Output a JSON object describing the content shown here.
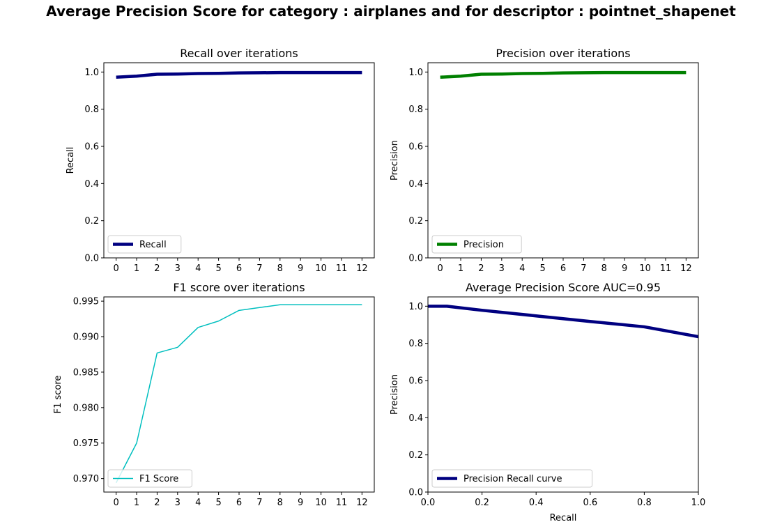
{
  "figure": {
    "suptitle": "Average Precision Score for category : airplanes and for descriptor : pointnet_shapenet"
  },
  "chart_data": [
    {
      "type": "line",
      "title": "Recall over iterations",
      "xlabel": "",
      "ylabel": "Recall",
      "x": [
        0,
        1,
        2,
        3,
        4,
        5,
        6,
        7,
        8,
        9,
        10,
        11,
        12
      ],
      "xticks": [
        0,
        1,
        2,
        3,
        4,
        5,
        6,
        7,
        8,
        9,
        10,
        11,
        12
      ],
      "xlim": [
        -0.6,
        12.6
      ],
      "yticks": [
        0.0,
        0.2,
        0.4,
        0.6,
        0.8,
        1.0
      ],
      "ylim": [
        0.0,
        1.05
      ],
      "tick_decimals": 1,
      "grid": false,
      "legend": "lower left",
      "series": [
        {
          "name": "Recall",
          "color": "#000080",
          "linewidth": 4.5,
          "values": [
            0.972,
            0.978,
            0.988,
            0.989,
            0.992,
            0.993,
            0.995,
            0.996,
            0.997,
            0.997,
            0.997,
            0.997,
            0.997
          ]
        }
      ]
    },
    {
      "type": "line",
      "title": "Precision over iterations",
      "xlabel": "",
      "ylabel": "Precision",
      "x": [
        0,
        1,
        2,
        3,
        4,
        5,
        6,
        7,
        8,
        9,
        10,
        11,
        12
      ],
      "xticks": [
        0,
        1,
        2,
        3,
        4,
        5,
        6,
        7,
        8,
        9,
        10,
        11,
        12
      ],
      "xlim": [
        -0.6,
        12.6
      ],
      "yticks": [
        0.0,
        0.2,
        0.4,
        0.6,
        0.8,
        1.0
      ],
      "ylim": [
        0.0,
        1.05
      ],
      "tick_decimals": 1,
      "grid": false,
      "legend": "lower left",
      "series": [
        {
          "name": "Precision",
          "color": "#008000",
          "linewidth": 4.5,
          "values": [
            0.972,
            0.978,
            0.988,
            0.989,
            0.992,
            0.993,
            0.995,
            0.996,
            0.997,
            0.997,
            0.997,
            0.997,
            0.997
          ]
        }
      ]
    },
    {
      "type": "line",
      "title": "F1 score over iterations",
      "xlabel": "",
      "ylabel": "F1 score",
      "x": [
        0,
        1,
        2,
        3,
        4,
        5,
        6,
        7,
        8,
        9,
        10,
        11,
        12
      ],
      "xticks": [
        0,
        1,
        2,
        3,
        4,
        5,
        6,
        7,
        8,
        9,
        10,
        11,
        12
      ],
      "xlim": [
        -0.6,
        12.6
      ],
      "yticks": [
        0.97,
        0.975,
        0.98,
        0.985,
        0.99,
        0.995
      ],
      "ylim": [
        0.9681,
        0.9956
      ],
      "tick_decimals": 3,
      "grid": false,
      "legend": "lower left",
      "series": [
        {
          "name": "F1 Score",
          "color": "#00BFBF",
          "linewidth": 1.5,
          "values": [
            0.9694,
            0.975,
            0.9877,
            0.9885,
            0.9913,
            0.9922,
            0.9937,
            0.9941,
            0.9945,
            0.9945,
            0.9945,
            0.9945,
            0.9945
          ]
        }
      ]
    },
    {
      "type": "line",
      "title": "Average Precision Score AUC=0.95",
      "xlabel": "Recall",
      "ylabel": "Precision",
      "x": [
        0.0,
        0.07,
        0.2,
        0.4,
        0.6,
        0.8,
        1.0
      ],
      "xticks": [
        0.0,
        0.2,
        0.4,
        0.6,
        0.8,
        1.0
      ],
      "xlim": [
        0.0,
        1.0
      ],
      "yticks": [
        0.0,
        0.2,
        0.4,
        0.6,
        0.8,
        1.0
      ],
      "ylim": [
        0.0,
        1.05
      ],
      "tick_decimals": 1,
      "grid": false,
      "legend": "lower left",
      "series": [
        {
          "name": "Precision Recall curve",
          "color": "#000080",
          "linewidth": 4.5,
          "values": [
            1.0,
            1.0,
            0.978,
            0.948,
            0.918,
            0.889,
            0.836
          ]
        }
      ]
    }
  ]
}
